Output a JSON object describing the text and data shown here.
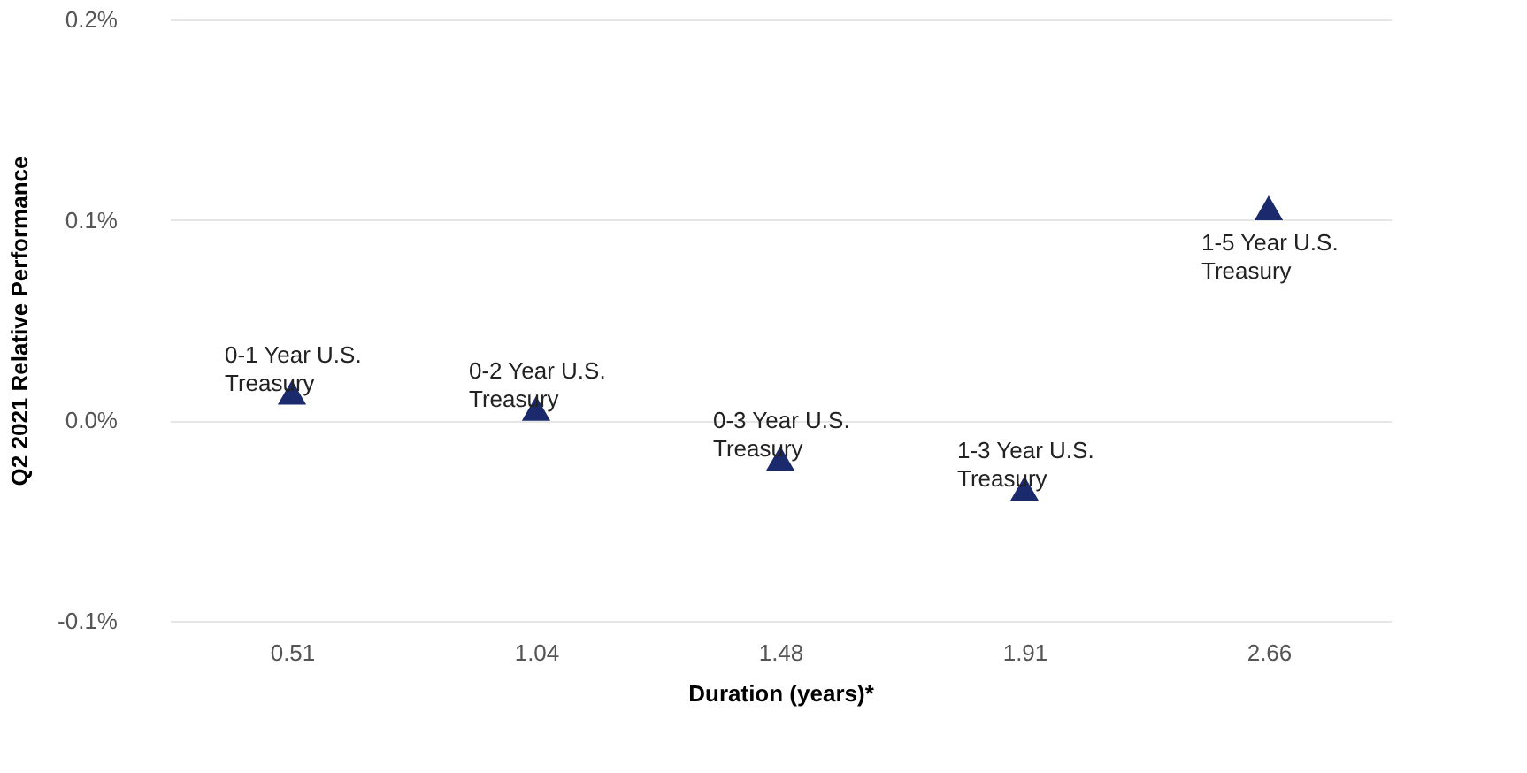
{
  "chart_data": {
    "type": "scatter",
    "xlabel": "Duration (years)*",
    "ylabel": "Q2 2021 Relative Performance",
    "categories": [
      "0.51",
      "1.04",
      "1.48",
      "1.91",
      "2.66"
    ],
    "series": [
      {
        "color": "#1a2a6c",
        "values": [
          0.014,
          0.006,
          -0.019,
          -0.034,
          0.106
        ]
      }
    ],
    "marker": "triangle",
    "grid": "y",
    "ylim": [
      -0.1,
      0.2
    ],
    "yticks": [
      {
        "value": -0.1,
        "label": "-0.1%"
      },
      {
        "value": 0.0,
        "label": "0.0%"
      },
      {
        "value": 0.1,
        "label": "0.1%"
      },
      {
        "value": 0.2,
        "label": "0.2%"
      }
    ],
    "annotations": [
      {
        "text": "0-1 Year U.S.\nTreasury",
        "x": "0.51",
        "y": 0.014
      },
      {
        "text": "0-2 Year U.S.\nTreasury",
        "x": "1.04",
        "y": 0.006
      },
      {
        "text": "0-3 Year U.S.\nTreasury",
        "x": "1.48",
        "y": -0.019
      },
      {
        "text": "1-3 Year U.S.\nTreasury",
        "x": "1.91",
        "y": -0.034
      },
      {
        "text": "1-5 Year U.S.\nTreasury",
        "x": "2.66",
        "y": 0.106
      }
    ]
  }
}
